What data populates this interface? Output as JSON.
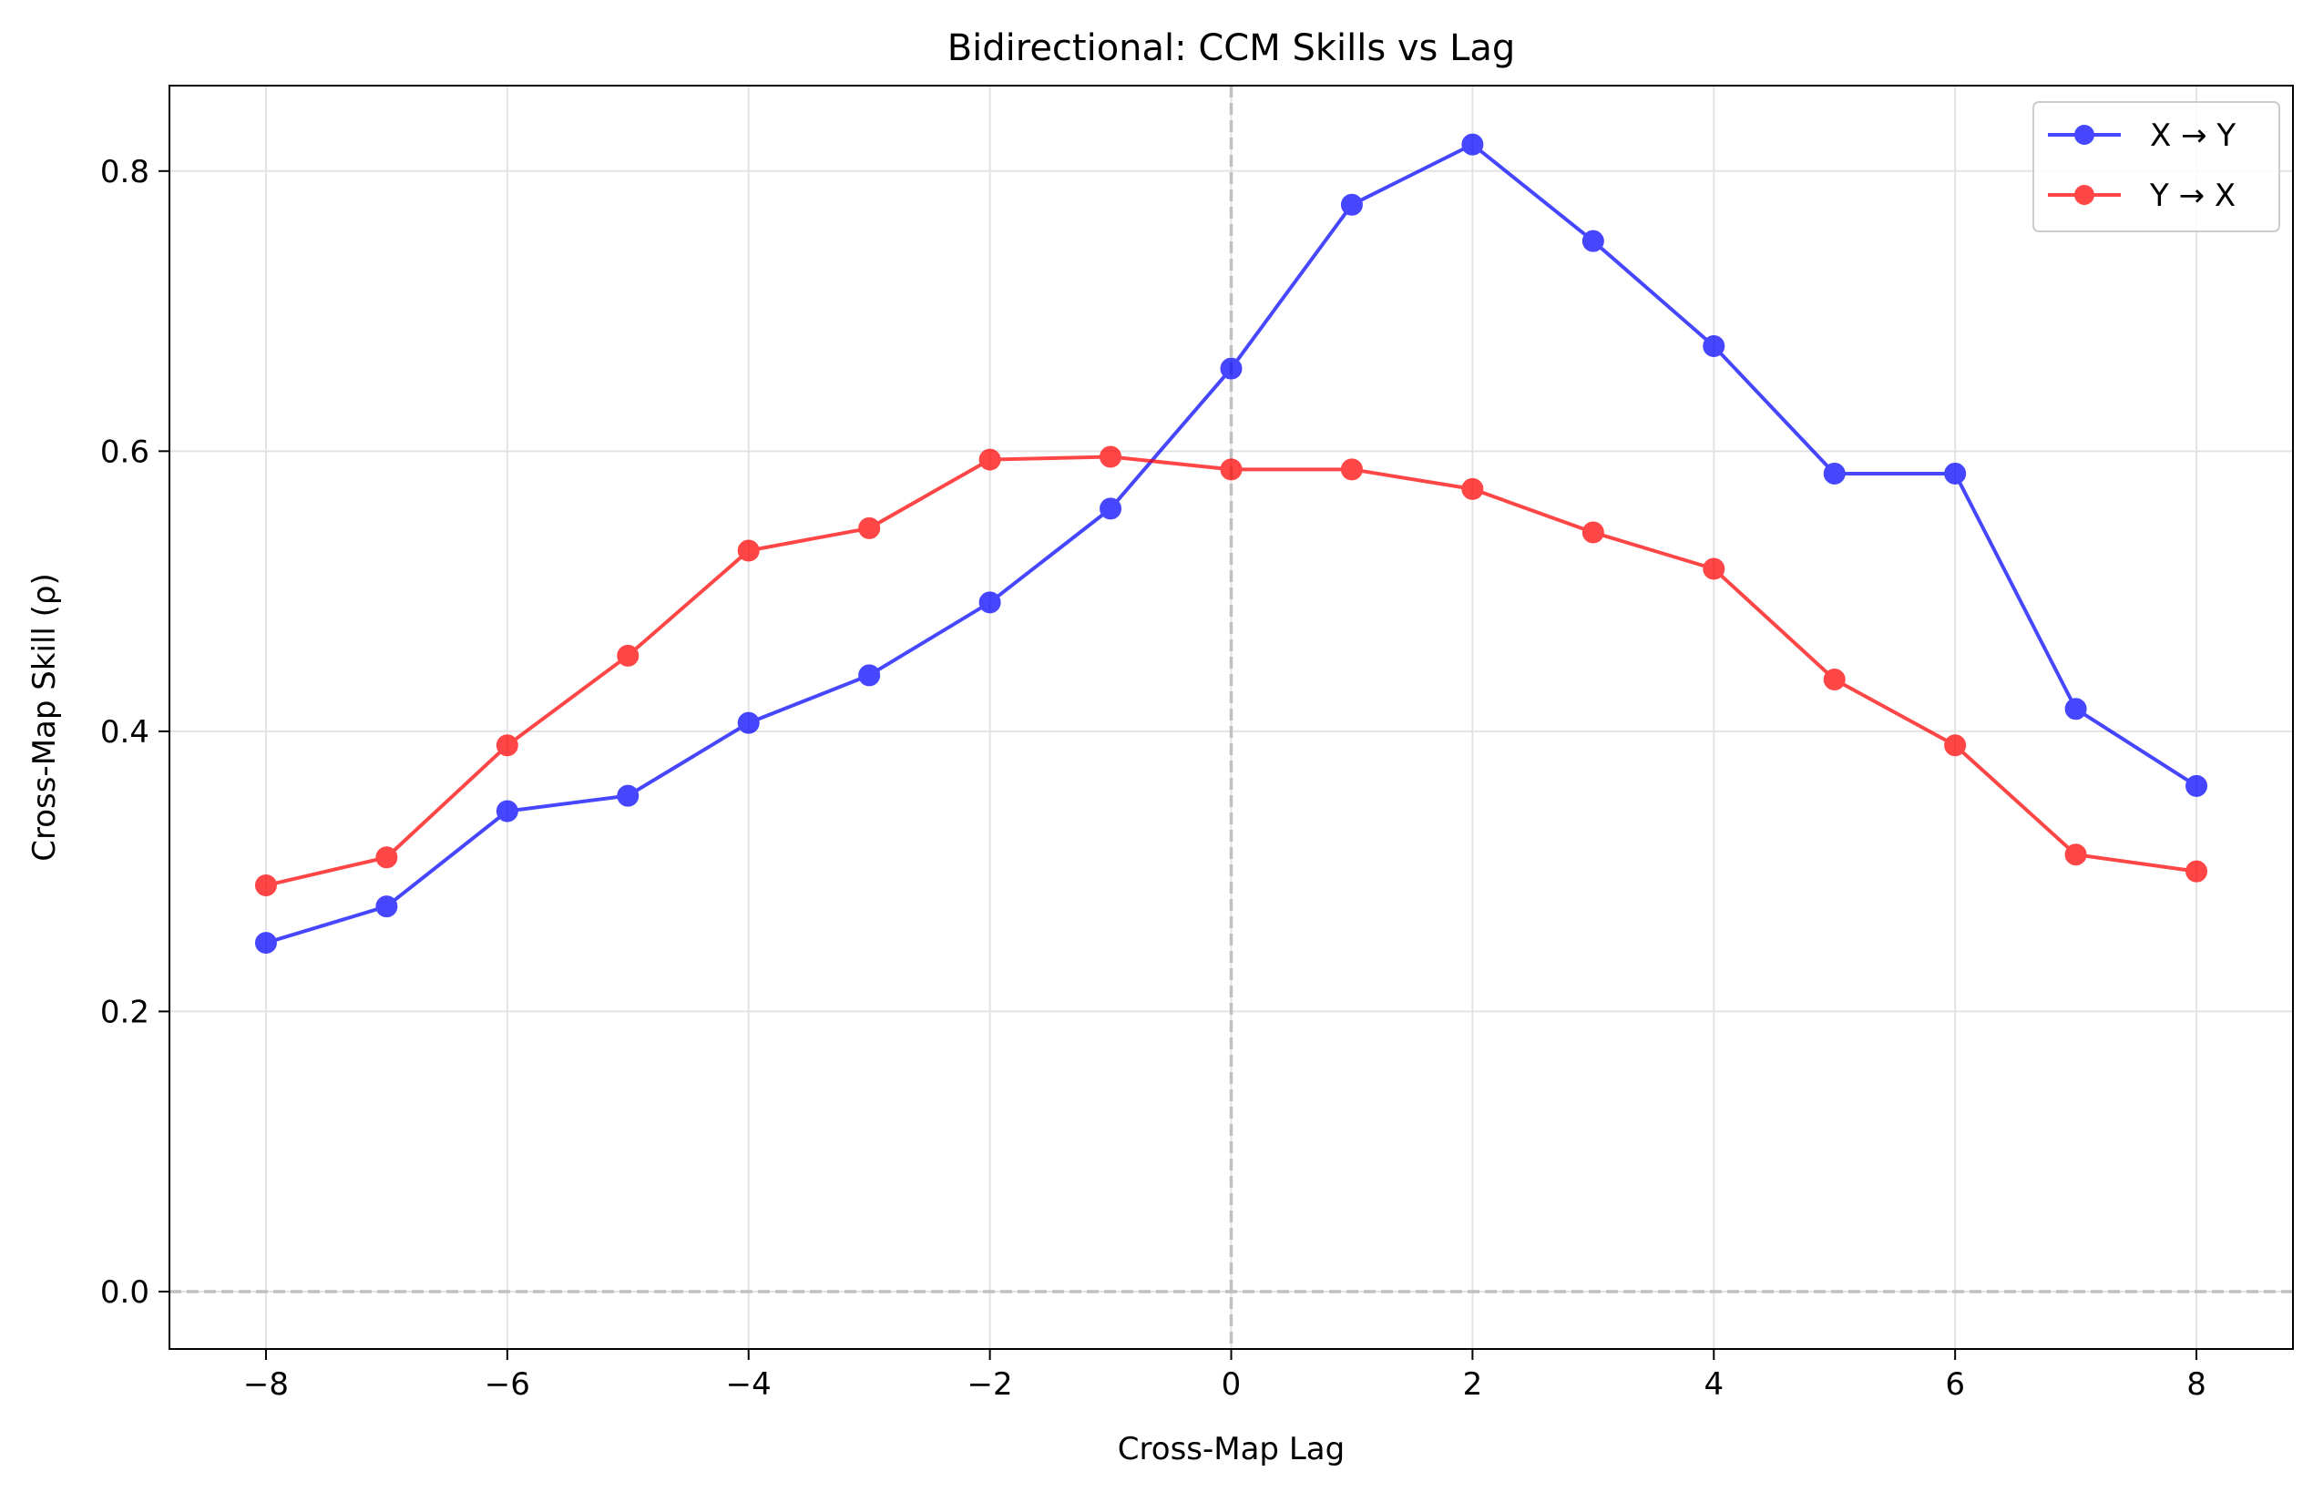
{
  "chart_data": {
    "type": "line",
    "title": "Bidirectional: CCM Skills vs Lag",
    "xlabel": "Cross-Map Lag",
    "ylabel": "Cross-Map Skill (ρ)",
    "x": [
      -8,
      -7,
      -6,
      -5,
      -4,
      -3,
      -2,
      -1,
      0,
      1,
      2,
      3,
      4,
      5,
      6,
      7,
      8
    ],
    "xlim": [
      -8.8,
      8.8
    ],
    "ylim": [
      -0.041,
      0.861
    ],
    "xticks": [
      -8,
      -6,
      -4,
      -2,
      0,
      2,
      4,
      6,
      8
    ],
    "xtick_labels": [
      "−8",
      "−6",
      "−4",
      "−2",
      "0",
      "2",
      "4",
      "6",
      "8"
    ],
    "yticks": [
      0.0,
      0.2,
      0.4,
      0.6,
      0.8
    ],
    "ytick_labels": [
      "0.0",
      "0.2",
      "0.4",
      "0.6",
      "0.8"
    ],
    "grid": true,
    "reference_lines": {
      "x": 0,
      "y": 0,
      "style": "dashed",
      "color": "#c0c0c0"
    },
    "legend_position": "top-right",
    "series": [
      {
        "name": "X → Y",
        "color": "#0000ff",
        "values": [
          0.249,
          0.275,
          0.343,
          0.354,
          0.406,
          0.44,
          0.492,
          0.559,
          0.659,
          0.776,
          0.819,
          0.75,
          0.675,
          0.584,
          0.584,
          0.416,
          0.361
        ]
      },
      {
        "name": "Y → X",
        "color": "#ff0000",
        "values": [
          0.29,
          0.31,
          0.39,
          0.454,
          0.529,
          0.545,
          0.594,
          0.596,
          0.587,
          0.587,
          0.573,
          0.542,
          0.516,
          0.437,
          0.39,
          0.312,
          0.3
        ]
      }
    ]
  }
}
